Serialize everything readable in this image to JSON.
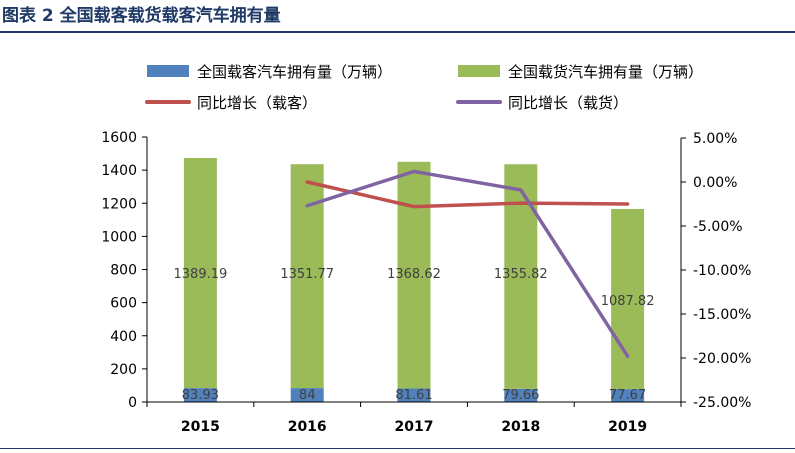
{
  "figure": {
    "title": "图表 2 全国载客载货载客汽车拥有量"
  },
  "chart_data": {
    "type": "bar",
    "stacked": true,
    "categories": [
      "2015",
      "2016",
      "2017",
      "2018",
      "2019"
    ],
    "series": [
      {
        "name": "全国载客汽车拥有量（万辆）",
        "kind": "bar",
        "axis": "left",
        "color": "#4f81bd",
        "values": [
          83.93,
          84,
          81.61,
          79.66,
          77.67
        ],
        "labels": [
          "83.93",
          "84",
          "81.61",
          "79.66",
          "77.67"
        ]
      },
      {
        "name": "全国载货汽车拥有量（万辆）",
        "kind": "bar",
        "axis": "left",
        "color": "#9bbb59",
        "values": [
          1389.19,
          1351.77,
          1368.62,
          1355.82,
          1087.82
        ],
        "labels": [
          "1389.19",
          "1351.77",
          "1368.62",
          "1355.82",
          "1087.82"
        ]
      },
      {
        "name": "同比增长（载客）",
        "kind": "line",
        "axis": "right",
        "color": "#c0504d",
        "values": [
          null,
          0.0,
          -2.8,
          -2.4,
          -2.5
        ]
      },
      {
        "name": "同比增长（载货）",
        "kind": "line",
        "axis": "right",
        "color": "#8064a2",
        "values": [
          null,
          -2.7,
          1.2,
          -0.9,
          -19.8
        ]
      }
    ],
    "y_left": {
      "min": 0,
      "max": 1600,
      "step": 200,
      "ticks": [
        "0",
        "200",
        "400",
        "600",
        "800",
        "1000",
        "1200",
        "1400",
        "1600"
      ]
    },
    "y_right": {
      "min": -25,
      "max": 5,
      "step": 5,
      "ticks": [
        "-25.00%",
        "-20.00%",
        "-15.00%",
        "-10.00%",
        "-5.00%",
        "0.00%",
        "5.00%"
      ]
    },
    "legend_position": "top",
    "grid": false
  }
}
